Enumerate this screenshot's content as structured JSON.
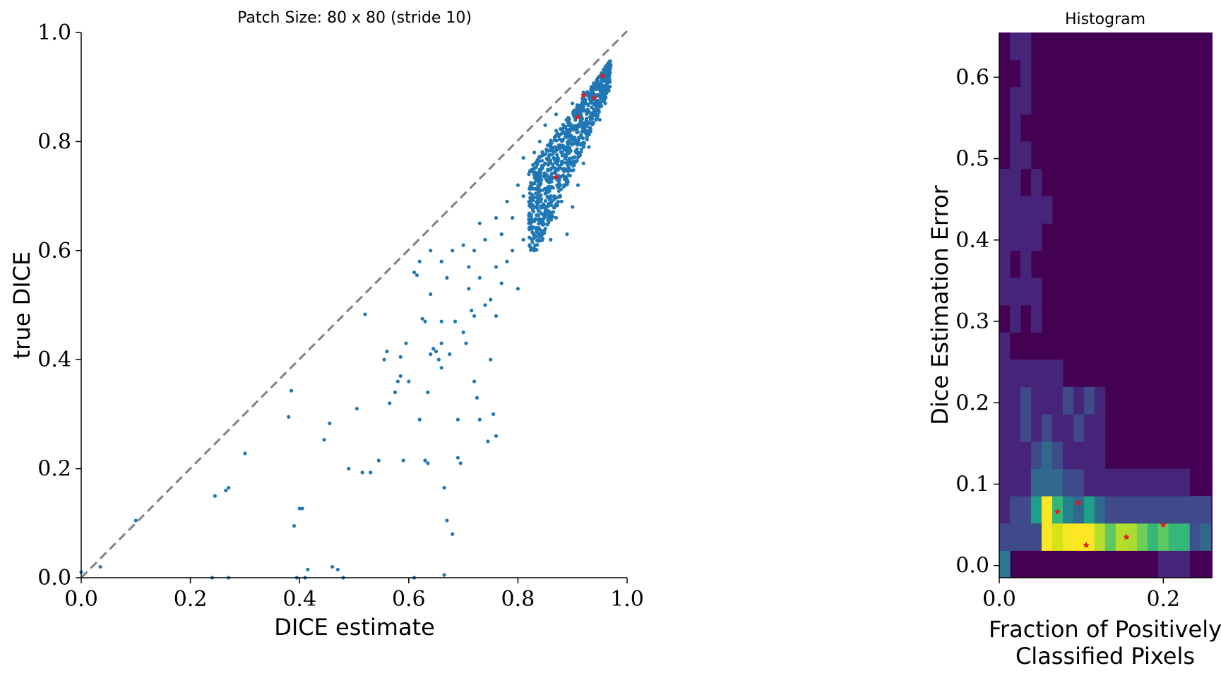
{
  "chart_data": [
    {
      "type": "scatter",
      "title": "Patch Size: 80 x 80 (stride 10)",
      "xlabel": "DICE estimate",
      "ylabel": "true DICE",
      "xlim": [
        0,
        1
      ],
      "ylim": [
        0,
        1
      ],
      "xticks": [
        "0.0",
        "0.2",
        "0.4",
        "0.6",
        "0.8",
        "1.0"
      ],
      "yticks": [
        "0.0",
        "0.2",
        "0.4",
        "0.6",
        "0.8",
        "1.0"
      ],
      "reference_line": {
        "from": [
          0,
          0
        ],
        "to": [
          1,
          1
        ],
        "style": "dashed",
        "color": "#808080"
      },
      "colors": {
        "points": "#1f77b4",
        "highlight": "#e41a1c"
      },
      "series": [
        {
          "values": [
            [
              0.0,
              0.01
            ],
            [
              0.035,
              0.02
            ],
            [
              0.1,
              0.105
            ],
            [
              0.245,
              0.15
            ],
            [
              0.265,
              0.16
            ],
            [
              0.27,
              0.165
            ],
            [
              0.24,
              0.0
            ],
            [
              0.27,
              0.0
            ],
            [
              0.3,
              0.228
            ],
            [
              0.38,
              0.295
            ],
            [
              0.385,
              0.343
            ],
            [
              0.39,
              0.095
            ],
            [
              0.395,
              0.0
            ],
            [
              0.4,
              0.127
            ],
            [
              0.405,
              0.127
            ],
            [
              0.41,
              0.0
            ],
            [
              0.415,
              0.015
            ],
            [
              0.445,
              0.253
            ],
            [
              0.455,
              0.283
            ],
            [
              0.46,
              0.02
            ],
            [
              0.47,
              0.015
            ],
            [
              0.48,
              0.0
            ],
            [
              0.49,
              0.2
            ],
            [
              0.505,
              0.31
            ],
            [
              0.515,
              0.193
            ],
            [
              0.53,
              0.193
            ],
            [
              0.52,
              0.483
            ],
            [
              0.545,
              0.215
            ],
            [
              0.555,
              0.4
            ],
            [
              0.56,
              0.415
            ],
            [
              0.565,
              0.32
            ],
            [
              0.575,
              0.34
            ],
            [
              0.585,
              0.405
            ],
            [
              0.585,
              0.37
            ],
            [
              0.58,
              0.36
            ],
            [
              0.59,
              0.215
            ],
            [
              0.595,
              0.43
            ],
            [
              0.6,
              0.36
            ],
            [
              0.61,
              0.56
            ],
            [
              0.615,
              0.555
            ],
            [
              0.62,
              0.29
            ],
            [
              0.625,
              0.475
            ],
            [
              0.63,
              0.47
            ],
            [
              0.63,
              0.215
            ],
            [
              0.635,
              0.21
            ],
            [
              0.635,
              0.34
            ],
            [
              0.64,
              0.41
            ],
            [
              0.645,
              0.42
            ],
            [
              0.65,
              0.415
            ],
            [
              0.655,
              0.4
            ],
            [
              0.66,
              0.385
            ],
            [
              0.66,
              0.43
            ],
            [
              0.665,
              0.165
            ],
            [
              0.67,
              0.105
            ],
            [
              0.675,
              0.41
            ],
            [
              0.68,
              0.08
            ],
            [
              0.685,
              0.47
            ],
            [
              0.69,
              0.29
            ],
            [
              0.69,
              0.22
            ],
            [
              0.695,
              0.21
            ],
            [
              0.7,
              0.45
            ],
            [
              0.705,
              0.43
            ],
            [
              0.71,
              0.53
            ],
            [
              0.715,
              0.49
            ],
            [
              0.72,
              0.36
            ],
            [
              0.725,
              0.33
            ],
            [
              0.73,
              0.29
            ],
            [
              0.745,
              0.25
            ],
            [
              0.75,
              0.4
            ],
            [
              0.755,
              0.3
            ],
            [
              0.76,
              0.26
            ],
            [
              0.61,
              0.0
            ],
            [
              0.665,
              0.005
            ],
            [
              0.62,
              0.58
            ],
            [
              0.64,
              0.6
            ],
            [
              0.66,
              0.58
            ],
            [
              0.68,
              0.6
            ],
            [
              0.7,
              0.61
            ],
            [
              0.72,
              0.6
            ],
            [
              0.74,
              0.62
            ],
            [
              0.76,
              0.57
            ],
            [
              0.78,
              0.58
            ],
            [
              0.64,
              0.52
            ],
            [
              0.67,
              0.55
            ],
            [
              0.71,
              0.57
            ],
            [
              0.73,
              0.55
            ],
            [
              0.75,
              0.51
            ],
            [
              0.77,
              0.54
            ],
            [
              0.72,
              0.48
            ],
            [
              0.76,
              0.48
            ],
            [
              0.8,
              0.53
            ],
            [
              0.66,
              0.47
            ],
            [
              0.74,
              0.5
            ],
            [
              0.79,
              0.6
            ],
            [
              0.81,
              0.62
            ],
            [
              0.77,
              0.63
            ],
            [
              0.83,
              0.6
            ],
            [
              0.73,
              0.65
            ],
            [
              0.76,
              0.66
            ],
            [
              0.79,
              0.66
            ],
            [
              0.82,
              0.65
            ],
            [
              0.84,
              0.63
            ],
            [
              0.86,
              0.62
            ],
            [
              0.78,
              0.69
            ],
            [
              0.81,
              0.7
            ],
            [
              0.83,
              0.68
            ],
            [
              0.85,
              0.67
            ],
            [
              0.87,
              0.66
            ],
            [
              0.89,
              0.63
            ],
            [
              0.8,
              0.72
            ],
            [
              0.82,
              0.74
            ],
            [
              0.84,
              0.72
            ],
            [
              0.86,
              0.7
            ],
            [
              0.88,
              0.69
            ],
            [
              0.9,
              0.68
            ],
            [
              0.81,
              0.77
            ],
            [
              0.83,
              0.78
            ],
            [
              0.85,
              0.76
            ],
            [
              0.87,
              0.75
            ],
            [
              0.89,
              0.73
            ],
            [
              0.91,
              0.72
            ],
            [
              0.84,
              0.8
            ],
            [
              0.86,
              0.79
            ],
            [
              0.88,
              0.78
            ],
            [
              0.9,
              0.77
            ],
            [
              0.92,
              0.76
            ],
            [
              0.85,
              0.83
            ],
            [
              0.87,
              0.82
            ],
            [
              0.89,
              0.81
            ],
            [
              0.91,
              0.8
            ],
            [
              0.93,
              0.79
            ],
            [
              0.87,
              0.85
            ],
            [
              0.89,
              0.84
            ],
            [
              0.91,
              0.83
            ],
            [
              0.93,
              0.82
            ],
            [
              0.95,
              0.84
            ],
            [
              0.9,
              0.87
            ],
            [
              0.92,
              0.86
            ],
            [
              0.94,
              0.85
            ],
            [
              0.96,
              0.87
            ],
            [
              0.92,
              0.89
            ],
            [
              0.94,
              0.88
            ],
            [
              0.96,
              0.9
            ],
            [
              0.95,
              0.92
            ],
            [
              0.97,
              0.94
            ],
            [
              0.96,
              0.93
            ]
          ]
        },
        {
          "values": [
            [
              0.87,
              0.735
            ],
            [
              0.91,
              0.845
            ],
            [
              0.92,
              0.885
            ],
            [
              0.94,
              0.88
            ],
            [
              0.955,
              0.92
            ]
          ]
        }
      ]
    },
    {
      "type": "heatmap",
      "title": "Histogram",
      "xlabel": "Fraction of Positively Classified Pixels",
      "ylabel": "Dice Estimation Error",
      "xlim": [
        0,
        0.26
      ],
      "ylim": [
        -0.015,
        0.655
      ],
      "xticks": [
        "0.0",
        "0.2"
      ],
      "yticks": [
        "0.0",
        "0.1",
        "0.2",
        "0.3",
        "0.4",
        "0.5",
        "0.6"
      ],
      "colormap": "viridis",
      "highlight_points": [
        [
          0.071,
          0.066
        ],
        [
          0.096,
          0.077
        ],
        [
          0.106,
          0.025
        ],
        [
          0.155,
          0.035
        ],
        [
          0.2,
          0.05
        ]
      ]
    }
  ]
}
